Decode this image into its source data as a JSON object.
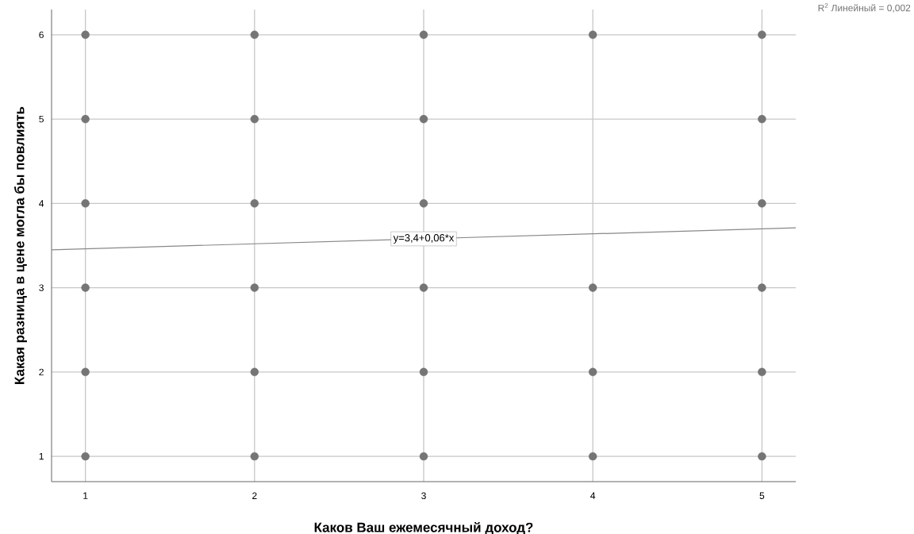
{
  "chart_data": {
    "type": "scatter",
    "xlabel": "Каков Ваш ежемесячный доход?",
    "ylabel": "Какая разница в цене могла бы повлиять",
    "xlim": [
      0.8,
      5.2
    ],
    "ylim": [
      0.7,
      6.3
    ],
    "xticks": [
      1,
      2,
      3,
      4,
      5
    ],
    "yticks": [
      1,
      2,
      3,
      4,
      5,
      6
    ],
    "grid": true,
    "series": [
      {
        "marker": "circle",
        "color": "#757575",
        "x": [
          1,
          1,
          1,
          1,
          1,
          1,
          2,
          2,
          2,
          2,
          2,
          2,
          3,
          3,
          3,
          3,
          3,
          3,
          4,
          4,
          4,
          4,
          5,
          5,
          5,
          5,
          5,
          5
        ],
        "values": [
          1,
          2,
          3,
          4,
          5,
          6,
          1,
          2,
          3,
          4,
          5,
          6,
          1,
          2,
          3,
          4,
          5,
          6,
          1,
          2,
          3,
          6,
          1,
          2,
          3,
          4,
          5,
          6
        ]
      },
      {
        "type": "line",
        "marker": "none",
        "color": "#888888",
        "x": [
          0.8,
          5.2
        ],
        "values": [
          3.45,
          3.71
        ]
      }
    ],
    "annotations": [
      {
        "text": "y=3,4+0,06*x",
        "x": 3,
        "y": 3.58
      },
      "R$^{2}$ Линейный = 0,002"
    ]
  }
}
